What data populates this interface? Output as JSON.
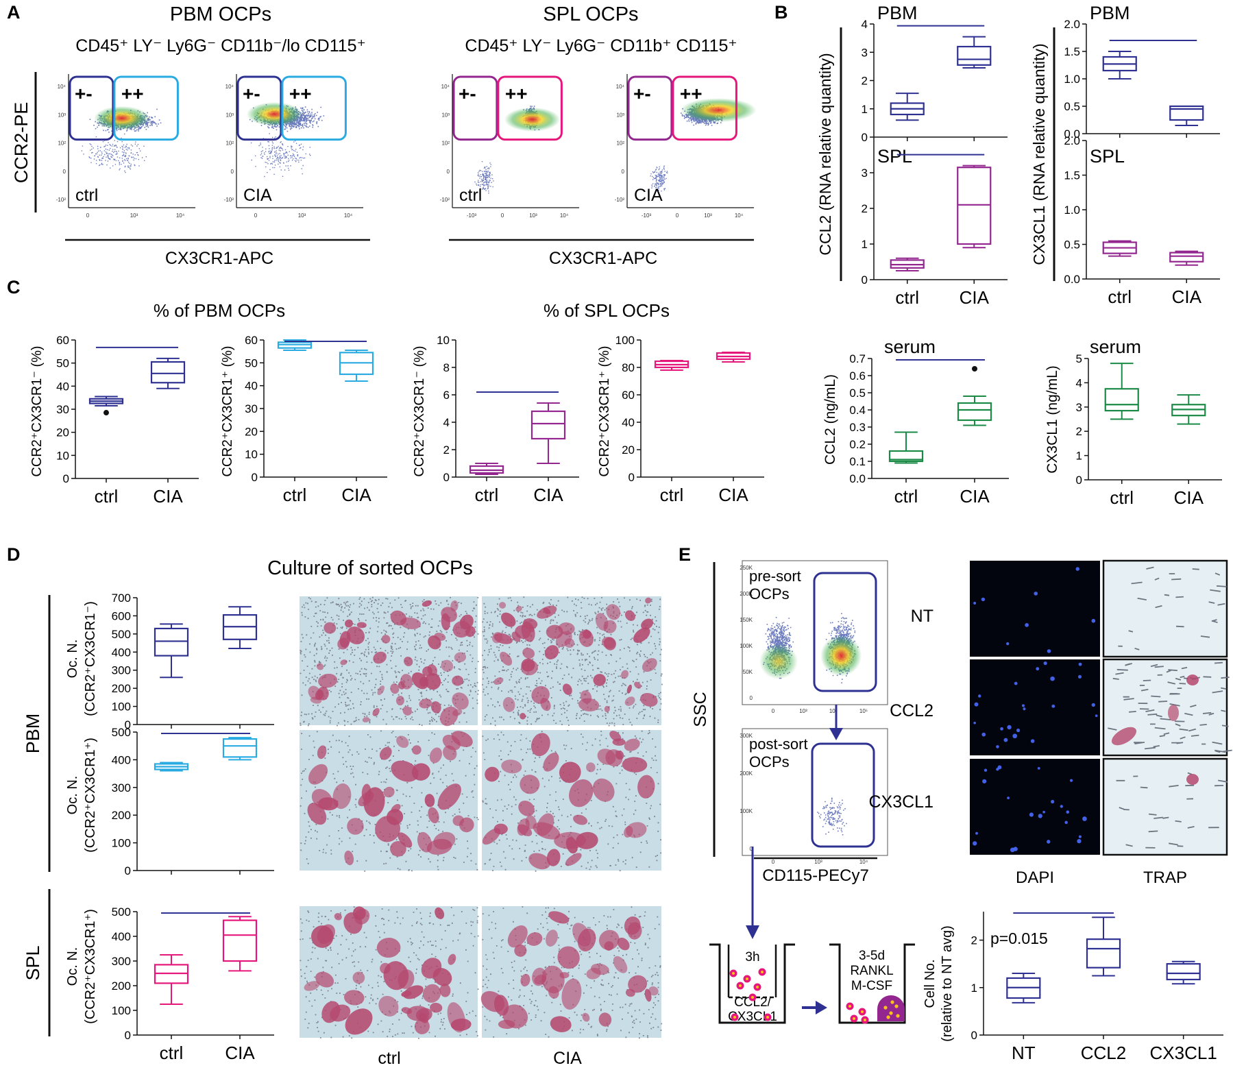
{
  "colors": {
    "dark_blue": "#2e3192",
    "light_blue": "#29abe2",
    "purple": "#93278f",
    "magenta": "#e6177a",
    "green": "#1a8a46",
    "black": "#111111",
    "tissue_bg": "#c8dde6",
    "cell_stain": "#b5486e"
  },
  "panel_labels": {
    "a": "A",
    "b": "B",
    "c": "C",
    "d": "D",
    "e": "E"
  },
  "panel_a": {
    "pbm_title": "PBM OCPs",
    "spl_title": "SPL OCPs",
    "pbm_phenotype": "CD45⁺ LY⁻ Ly6G⁻ CD11b⁻/lo CD115⁺",
    "spl_phenotype": "CD45⁺ LY⁻ Ly6G⁻ CD11b⁺ CD115⁺",
    "ylabel": "CCR2-PE",
    "xlabel": "CX3CR1-APC",
    "gate_plus_minus": "+-",
    "gate_plus_plus": "++",
    "cond_ctrl": "ctrl",
    "cond_cia": "CIA",
    "y_ticks": [
      "10⁴",
      "10³",
      "10²",
      "0",
      "-10²"
    ],
    "x_ticks_pbm": [
      "0",
      "10³",
      "10⁴"
    ],
    "x_ticks_spl": [
      "-10³",
      "0",
      "10³",
      "10⁴"
    ]
  },
  "panel_b": {
    "ccl2_ylabel": "CCL2 (RNA relative quantity)",
    "cx3cl1_ylabel": "CX3CL1 (RNA relative quantity)",
    "pbm": "PBM",
    "spl": "SPL",
    "serum": "serum",
    "serum_ccl2_ylabel": "CCL2 (ng/mL)",
    "serum_cx3cl1_ylabel": "CX3CL1 (ng/mL)"
  },
  "panel_c": {
    "pbm_title": "% of PBM OCPs",
    "spl_title": "% of SPL OCPs",
    "ylabel_pm": "CCR2⁺CX3CR1⁻ (%)",
    "ylabel_pp": "CCR2⁺CX3CR1⁺ (%)"
  },
  "panel_d": {
    "title": "Culture of sorted OCPs",
    "pbm": "PBM",
    "spl": "SPL",
    "ylabel_line1": "Oc. N.",
    "ylabel_pm": "(CCR2⁺CX3CR1⁻)",
    "ylabel_pp": "(CCR2⁺CX3CR1⁺)",
    "img_ctrl": "ctrl",
    "img_cia": "CIA"
  },
  "panel_e": {
    "pre_sort_1": "pre-sort",
    "pre_sort_2": "OCPs",
    "post_sort_1": "post-sort",
    "post_sort_2": "OCPs",
    "ylabel": "SSC",
    "xlabel": "CD115-PECy7",
    "y_ticks_pre": [
      "250K",
      "200K",
      "150K",
      "100K",
      "50K",
      "0"
    ],
    "y_ticks_post": [
      "300K",
      "200K",
      "100K",
      "0"
    ],
    "x_ticks_pre": [
      "0",
      "10³",
      "10⁴",
      "10⁵"
    ],
    "x_ticks_post": [
      "0",
      "10³",
      "10⁴"
    ],
    "well1_time": "3h",
    "well1_l1": "CCL2/",
    "well1_l2": "CX3CL1",
    "well2_l1": "3-5d",
    "well2_l2": "RANKL",
    "well2_l3": "M-CSF",
    "row_nt": "NT",
    "row_ccl2": "CCL2",
    "row_cx3cl1": "CX3CL1",
    "col_dapi": "DAPI",
    "col_trap": "TRAP",
    "pvalue": "p=0.015",
    "ylabel_1": "Cell No.",
    "ylabel_2": "(relative to NT avg)"
  },
  "chart_data": [
    {
      "id": "B_PBM_CCL2",
      "type": "box",
      "categories": [
        "ctrl",
        "CIA"
      ],
      "ylim": [
        0,
        4
      ],
      "yticks": [
        0,
        1,
        2,
        3,
        4
      ],
      "boxes": [
        {
          "min": 0.6,
          "q1": 0.8,
          "median": 1.0,
          "q3": 1.2,
          "max": 1.55
        },
        {
          "min": 2.45,
          "q1": 2.55,
          "median": 2.75,
          "q3": 3.2,
          "max": 3.55
        }
      ],
      "significance": true
    },
    {
      "id": "B_PBM_CX3CL1",
      "type": "box",
      "categories": [
        "ctrl",
        "CIA"
      ],
      "ylim": [
        0,
        2
      ],
      "yticks": [
        0.0,
        0.5,
        1.0,
        1.5,
        2.0
      ],
      "boxes": [
        {
          "min": 1.0,
          "q1": 1.15,
          "median": 1.27,
          "q3": 1.4,
          "max": 1.5
        },
        {
          "min": 0.15,
          "q1": 0.25,
          "median": 0.45,
          "q3": 0.5,
          "max": 0.5
        }
      ],
      "significance": true
    },
    {
      "id": "B_SPL_CCL2",
      "type": "box",
      "categories": [
        "ctrl",
        "CIA"
      ],
      "ylim": [
        0,
        4
      ],
      "yticks": [
        0,
        1,
        2,
        3
      ],
      "boxes": [
        {
          "min": 0.25,
          "q1": 0.33,
          "median": 0.42,
          "q3": 0.55,
          "max": 0.6
        },
        {
          "min": 0.9,
          "q1": 1.0,
          "median": 2.1,
          "q3": 3.15,
          "max": 3.2
        }
      ],
      "significance": true
    },
    {
      "id": "B_SPL_CX3CL1",
      "type": "box",
      "categories": [
        "ctrl",
        "CIA"
      ],
      "ylim": [
        0,
        2
      ],
      "yticks": [
        0.0,
        0.5,
        1.0,
        1.5,
        2.0
      ],
      "boxes": [
        {
          "min": 0.33,
          "q1": 0.37,
          "median": 0.45,
          "q3": 0.53,
          "max": 0.55
        },
        {
          "min": 0.2,
          "q1": 0.25,
          "median": 0.33,
          "q3": 0.38,
          "max": 0.4
        }
      ],
      "significance": false
    },
    {
      "id": "C_PBM_PM",
      "type": "box",
      "categories": [
        "ctrl",
        "CIA"
      ],
      "ylim": [
        0,
        60
      ],
      "yticks": [
        0,
        10,
        20,
        30,
        40,
        50,
        60
      ],
      "boxes": [
        {
          "min": 31.5,
          "q1": 32.5,
          "median": 33.5,
          "q3": 34.5,
          "max": 35.5,
          "outliers": [
            28.5
          ]
        },
        {
          "min": 39,
          "q1": 41.5,
          "median": 45.5,
          "q3": 50.5,
          "max": 52
        }
      ],
      "significance": true
    },
    {
      "id": "C_PBM_PP",
      "type": "box",
      "categories": [
        "ctrl",
        "CIA"
      ],
      "ylim": [
        0,
        60
      ],
      "yticks": [
        0,
        10,
        20,
        30,
        40,
        50,
        60
      ],
      "boxes": [
        {
          "min": 55.5,
          "q1": 56.5,
          "median": 58,
          "q3": 59,
          "max": 60
        },
        {
          "min": 42,
          "q1": 45,
          "median": 50,
          "q3": 54.5,
          "max": 55.5
        }
      ],
      "significance": true
    },
    {
      "id": "C_SPL_PM",
      "type": "box",
      "categories": [
        "ctrl",
        "CIA"
      ],
      "ylim": [
        0,
        10
      ],
      "yticks": [
        0,
        2,
        4,
        6,
        8,
        10
      ],
      "boxes": [
        {
          "min": 0.2,
          "q1": 0.3,
          "median": 0.5,
          "q3": 0.8,
          "max": 1.0
        },
        {
          "min": 1.0,
          "q1": 2.8,
          "median": 3.9,
          "q3": 4.8,
          "max": 5.4
        }
      ],
      "significance": true
    },
    {
      "id": "C_SPL_PP",
      "type": "box",
      "categories": [
        "ctrl",
        "CIA"
      ],
      "ylim": [
        0,
        100
      ],
      "yticks": [
        0,
        20,
        40,
        60,
        80,
        100
      ],
      "boxes": [
        {
          "min": 78,
          "q1": 80,
          "median": 82,
          "q3": 84.5,
          "max": 85
        },
        {
          "min": 84,
          "q1": 86,
          "median": 88,
          "q3": 90.5,
          "max": 91
        }
      ],
      "significance": false
    },
    {
      "id": "B_serum_CCL2",
      "type": "box",
      "categories": [
        "ctrl",
        "CIA"
      ],
      "ylim": [
        0,
        0.7
      ],
      "yticks": [
        0.0,
        0.1,
        0.2,
        0.3,
        0.4,
        0.5,
        0.6,
        0.7
      ],
      "boxes": [
        {
          "min": 0.09,
          "q1": 0.1,
          "median": 0.11,
          "q3": 0.16,
          "max": 0.27
        },
        {
          "min": 0.31,
          "q1": 0.34,
          "median": 0.4,
          "q3": 0.44,
          "max": 0.48,
          "outliers": [
            0.64
          ]
        }
      ],
      "significance": true
    },
    {
      "id": "B_serum_CX3CL1",
      "type": "box",
      "categories": [
        "ctrl",
        "CIA"
      ],
      "ylim": [
        0,
        5
      ],
      "yticks": [
        0,
        1,
        2,
        3,
        4,
        5
      ],
      "boxes": [
        {
          "min": 2.5,
          "q1": 2.85,
          "median": 3.1,
          "q3": 3.75,
          "max": 4.8
        },
        {
          "min": 2.3,
          "q1": 2.65,
          "median": 2.9,
          "q3": 3.1,
          "max": 3.5
        }
      ],
      "significance": false
    },
    {
      "id": "D_PBM_PM",
      "type": "box",
      "categories": [
        "ctrl",
        "CIA"
      ],
      "ylim": [
        0,
        700
      ],
      "yticks": [
        0,
        100,
        200,
        300,
        400,
        500,
        600,
        700
      ],
      "boxes": [
        {
          "min": 260,
          "q1": 380,
          "median": 460,
          "q3": 530,
          "max": 555
        },
        {
          "min": 420,
          "q1": 470,
          "median": 540,
          "q3": 605,
          "max": 650
        }
      ],
      "significance": false
    },
    {
      "id": "D_PBM_PP",
      "type": "box",
      "categories": [
        "ctrl",
        "CIA"
      ],
      "ylim": [
        0,
        500
      ],
      "yticks": [
        0,
        100,
        200,
        300,
        400,
        500
      ],
      "boxes": [
        {
          "min": 360,
          "q1": 365,
          "median": 375,
          "q3": 385,
          "max": 390
        },
        {
          "min": 400,
          "q1": 410,
          "median": 450,
          "q3": 475,
          "max": 480
        }
      ],
      "significance": true
    },
    {
      "id": "D_SPL_PP",
      "type": "box",
      "categories": [
        "ctrl",
        "CIA"
      ],
      "ylim": [
        0,
        500
      ],
      "yticks": [
        0,
        100,
        200,
        300,
        400,
        500
      ],
      "boxes": [
        {
          "min": 125,
          "q1": 210,
          "median": 250,
          "q3": 285,
          "max": 325
        },
        {
          "min": 260,
          "q1": 300,
          "median": 405,
          "q3": 465,
          "max": 480
        }
      ],
      "significance": true
    },
    {
      "id": "E_cellno",
      "type": "box",
      "categories": [
        "NT",
        "CCL2",
        "CX3CL1"
      ],
      "ylim": [
        0,
        2.6
      ],
      "yticks": [
        0,
        1,
        2
      ],
      "boxes": [
        {
          "min": 0.68,
          "q1": 0.78,
          "median": 1.0,
          "q3": 1.2,
          "max": 1.3
        },
        {
          "min": 1.25,
          "q1": 1.42,
          "median": 1.82,
          "q3": 2.02,
          "max": 2.48
        },
        {
          "min": 1.08,
          "q1": 1.17,
          "median": 1.3,
          "q3": 1.5,
          "max": 1.55
        }
      ],
      "significance": true
    }
  ]
}
